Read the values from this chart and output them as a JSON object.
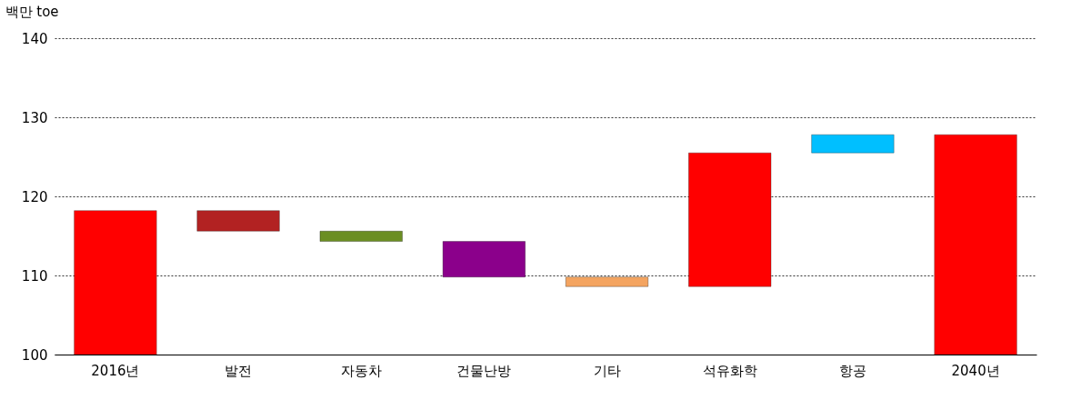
{
  "chart_data": {
    "type": "bar",
    "ylabel": "백만 toe",
    "categories": [
      "2016년",
      "발전",
      "자동차",
      "건물난방",
      "기타",
      "석유화학",
      "항공",
      "2040년"
    ],
    "values": [
      18.2,
      -2.6,
      -1.3,
      -4.5,
      -1.2,
      16.9,
      2.3,
      27.8
    ],
    "base": [
      100,
      118.2,
      115.6,
      114.3,
      109.8,
      108.6,
      125.5,
      100
    ],
    "colors": [
      "#ff0000",
      "#b22222",
      "#6b8e23",
      "#8b008b",
      "#f4a460",
      "#ff0000",
      "#00bfff",
      "#ff0000"
    ],
    "ylim": [
      100,
      140
    ],
    "yticks": [
      100,
      110,
      120,
      130,
      140
    ],
    "grid": "y"
  }
}
